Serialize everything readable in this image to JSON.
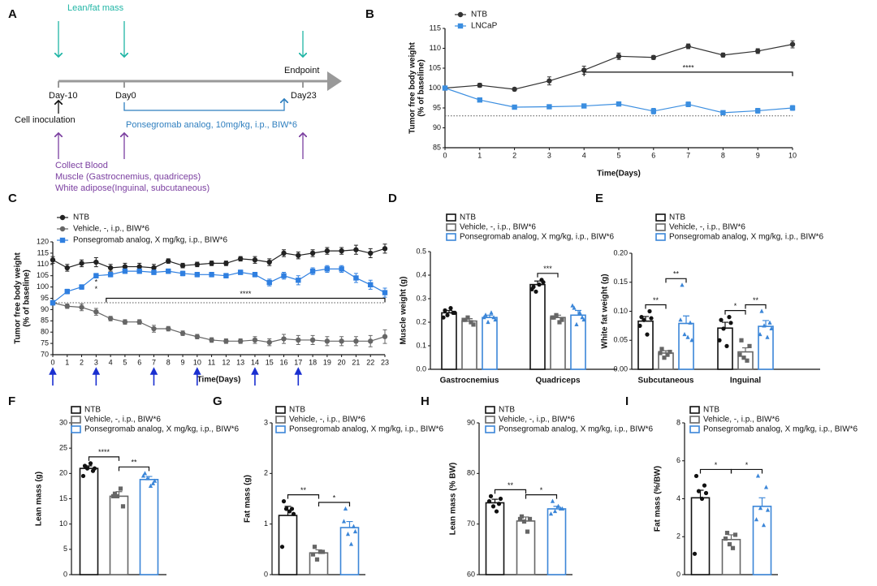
{
  "panel_a": {
    "label": "A",
    "top_label": "Lean/fat mass",
    "endpoint": "Endpoint",
    "days": [
      "Day-10",
      "Day0",
      "Day23"
    ],
    "start_event": "Cell inoculation",
    "treatment": "Ponsegromab analog, 10mg/kg, i.p., BIW*6",
    "collection": [
      "Collect Blood",
      "Muscle (Gastrocnemius, quadriceps)",
      "White adipose(Inguinal, subcutaneous)"
    ]
  },
  "chart_data": [
    {
      "type": "line",
      "panel": "B",
      "ylabel": [
        "Tumor free body weight",
        "(% of baseline)"
      ],
      "xlabel": "Time(Days)",
      "x": [
        0,
        1,
        2,
        3,
        4,
        5,
        6,
        7,
        8,
        9,
        10
      ],
      "xlim": [
        0,
        10
      ],
      "xticks": [
        0,
        1,
        2,
        3,
        4,
        5,
        6,
        7,
        8,
        9,
        10
      ],
      "ylim": [
        85,
        115
      ],
      "yticks": [
        85,
        90,
        95,
        100,
        105,
        110,
        115
      ],
      "reference_line": 93,
      "series": [
        {
          "name": "NTB",
          "color": "#333333",
          "marker": "circle",
          "values": [
            100,
            100.7,
            99.7,
            101.8,
            104.5,
            108,
            107.7,
            110.5,
            108.3,
            109.3,
            111
          ],
          "errors": [
            0,
            0.5,
            0.4,
            1,
            1,
            0.8,
            0.5,
            0.6,
            0.5,
            0.6,
            0.9
          ]
        },
        {
          "name": "LNCaP",
          "color": "#3b8ee0",
          "marker": "square",
          "values": [
            100,
            97,
            95.2,
            95.3,
            95.5,
            96,
            94.2,
            95.9,
            93.8,
            94.3,
            95
          ],
          "errors": [
            0,
            0.4,
            0.4,
            0.4,
            0.5,
            0.5,
            0.7,
            0.6,
            0.5,
            0.6,
            0.6
          ]
        }
      ],
      "annotations": [
        {
          "text": "****",
          "x": [
            4,
            10
          ],
          "y": 104
        }
      ]
    },
    {
      "type": "line",
      "panel": "C",
      "ylabel": [
        "Tumor free body weight",
        "(% of baseline)"
      ],
      "xlabel": "Time(Days)",
      "x": [
        0,
        1,
        2,
        3,
        4,
        5,
        6,
        7,
        8,
        9,
        10,
        11,
        12,
        13,
        14,
        15,
        16,
        17,
        18,
        19,
        20,
        21,
        22,
        23
      ],
      "xlim": [
        0,
        23
      ],
      "xticks": [
        0,
        1,
        2,
        3,
        4,
        5,
        6,
        7,
        8,
        9,
        10,
        11,
        12,
        13,
        14,
        15,
        16,
        17,
        18,
        19,
        20,
        21,
        22,
        23
      ],
      "ylim": [
        70,
        120
      ],
      "yticks": [
        70,
        75,
        80,
        85,
        90,
        95,
        100,
        105,
        110,
        115,
        120
      ],
      "reference_line": 93,
      "dose_days": [
        0,
        3,
        7,
        10,
        14,
        17
      ],
      "series": [
        {
          "name": "NTB",
          "color": "#222222",
          "marker": "circle",
          "values": [
            112,
            108.5,
            110.5,
            111,
            108.5,
            109,
            109,
            108.5,
            111.5,
            109.5,
            110,
            110.5,
            110.5,
            112.5,
            112,
            111,
            115,
            114,
            115,
            116,
            116,
            116.5,
            115,
            117
          ],
          "errors": [
            1.5,
            1.5,
            1.5,
            2,
            1.5,
            1.5,
            1.5,
            1.5,
            1,
            1,
            1,
            1,
            1,
            1,
            1.5,
            1.5,
            1.5,
            1.5,
            1.5,
            1.5,
            1.5,
            2,
            2,
            2
          ]
        },
        {
          "name": "Vehicle, -, i.p., BIW*6",
          "color": "#666666",
          "marker": "circle",
          "values": [
            93,
            91.5,
            91,
            89,
            86,
            84.5,
            84.5,
            81.5,
            81.5,
            79.5,
            78,
            76.5,
            76,
            76,
            76.5,
            75.5,
            77,
            76.5,
            76.5,
            76,
            76,
            76,
            76,
            78
          ],
          "errors": [
            1,
            1,
            1.5,
            1.5,
            1,
            1,
            1,
            1.5,
            1,
            1,
            1,
            1,
            1,
            1,
            1.5,
            1.5,
            2,
            2,
            2,
            2,
            2,
            2,
            2.5,
            3
          ]
        },
        {
          "name": "Ponsegromab analog, X mg/kg, i.p., BIW*6",
          "color": "#2f7fe0",
          "marker": "square",
          "values": [
            93,
            98,
            100,
            105,
            105.5,
            107,
            107,
            106.5,
            107,
            106,
            105.5,
            105.5,
            105,
            106.5,
            105.5,
            102,
            105,
            103,
            107,
            108,
            108,
            104,
            101,
            97.5
          ],
          "errors": [
            1,
            1,
            1,
            1,
            1,
            1,
            1,
            1,
            1,
            1,
            1,
            1,
            1,
            1,
            1,
            1.5,
            1.5,
            2,
            1.5,
            1.5,
            1.5,
            2,
            2,
            2
          ]
        }
      ],
      "annotations": [
        {
          "text": "****",
          "x": [
            3.7,
            23
          ],
          "y": 95
        },
        {
          "text": "*",
          "x": 3,
          "y": 102
        },
        {
          "text": "*",
          "x": 3,
          "y": 99
        }
      ]
    },
    {
      "type": "bar",
      "panel": "D",
      "ylabel": "Muscle weight (g)",
      "categories": [
        "Gastrocnemius",
        "Quadriceps"
      ],
      "ylim": [
        0,
        0.5
      ],
      "yticks": [
        {
          "value": 0,
          "label": "0.0"
        },
        0.1,
        0.2,
        0.3,
        0.4,
        0.5
      ],
      "series": [
        {
          "name": "NTB",
          "color": "#111111",
          "marker": "circle",
          "values": [
            0.24,
            0.36
          ],
          "errors": [
            0.01,
            0.015
          ],
          "points": [
            [
              0.25,
              0.24,
              0.23,
              0.26,
              0.22,
              0.24
            ],
            [
              0.35,
              0.38,
              0.33,
              0.36,
              0.34,
              0.37
            ]
          ]
        },
        {
          "name": "Vehicle, -, i.p., BIW*6",
          "color": "#666666",
          "marker": "square",
          "values": [
            0.205,
            0.22
          ],
          "errors": [
            0.01,
            0.01
          ],
          "points": [
            [
              0.21,
              0.19,
              0.22,
              0.2,
              0.21
            ],
            [
              0.22,
              0.21,
              0.23,
              0.2,
              0.22
            ]
          ]
        },
        {
          "name": "Ponsegromab analog, X mg/kg, i.p., BIW*6",
          "color": "#3b86d8",
          "marker": "triangle",
          "values": [
            0.22,
            0.23
          ],
          "errors": [
            0.01,
            0.02
          ],
          "points": [
            [
              0.23,
              0.22,
              0.2,
              0.24,
              0.22,
              0.21
            ],
            [
              0.26,
              0.22,
              0.19,
              0.24,
              0.27,
              0.21
            ]
          ]
        }
      ],
      "annotations": [
        {
          "text": "***"
        }
      ]
    },
    {
      "type": "bar",
      "panel": "E",
      "ylabel": "White fat weight (g)",
      "categories": [
        "Subcutaneous",
        "Inguinal"
      ],
      "ylim": [
        0,
        0.2
      ],
      "yticks": [
        {
          "value": 0,
          "label": "0.00"
        },
        0.05,
        {
          "value": 0.1,
          "label": "0.10"
        },
        0.15,
        {
          "value": 0.2,
          "label": "0.20"
        }
      ],
      "series": [
        {
          "name": "NTB",
          "color": "#111111",
          "marker": "circle",
          "values": [
            0.083,
            0.071
          ],
          "errors": [
            0.008,
            0.01
          ],
          "points": [
            [
              0.09,
              0.1,
              0.085,
              0.06,
              0.075,
              0.088
            ],
            [
              0.085,
              0.09,
              0.07,
              0.04,
              0.05,
              0.08
            ]
          ]
        },
        {
          "name": "Vehicle, -, i.p., BIW*6",
          "color": "#666666",
          "marker": "square",
          "values": [
            0.028,
            0.03
          ],
          "errors": [
            0.004,
            0.007
          ],
          "points": [
            [
              0.035,
              0.03,
              0.02,
              0.025,
              0.028
            ],
            [
              0.05,
              0.04,
              0.02,
              0.015,
              0.025
            ]
          ]
        },
        {
          "name": "Ponsegromab analog, X mg/kg, i.p., BIW*6",
          "color": "#3b86d8",
          "marker": "triangle",
          "values": [
            0.079,
            0.074
          ],
          "errors": [
            0.013,
            0.01
          ],
          "points": [
            [
              0.145,
              0.08,
              0.06,
              0.055,
              0.085,
              0.05
            ],
            [
              0.1,
              0.08,
              0.075,
              0.055,
              0.06,
              0.07
            ]
          ]
        }
      ],
      "annotations": [
        {
          "text": "**"
        },
        {
          "text": "**"
        },
        {
          "text": "*"
        },
        {
          "text": "**"
        }
      ]
    },
    {
      "type": "bar",
      "panel": "F",
      "ylabel": "Lean mass (g)",
      "categories": [
        null
      ],
      "ylim": [
        0,
        30
      ],
      "yticks": [
        0,
        5,
        10,
        15,
        20,
        25,
        30
      ],
      "series": [
        {
          "name": "NTB",
          "color": "#111111",
          "marker": "circle",
          "values": [
            21
          ],
          "errors": [
            0.5
          ],
          "points": [
            [
              21.5,
              20.5,
              21,
              22,
              19.5,
              21
            ]
          ]
        },
        {
          "name": "Vehicle, -, i.p., BIW*6",
          "color": "#666666",
          "marker": "square",
          "values": [
            15.5
          ],
          "errors": [
            0.9
          ],
          "points": [
            [
              16,
              13.5,
              15.5,
              17,
              15.5
            ]
          ]
        },
        {
          "name": "Ponsegromab analog, X mg/kg, i.p., BIW*6",
          "color": "#3b86d8",
          "marker": "triangle",
          "values": [
            18.8
          ],
          "errors": [
            0.6
          ],
          "points": [
            [
              20,
              18,
              19,
              17.5,
              19.5,
              18.5
            ]
          ]
        }
      ],
      "annotations": [
        {
          "text": "****"
        },
        {
          "text": "**"
        }
      ]
    },
    {
      "type": "bar",
      "panel": "G",
      "ylabel": "Fat mass (g)",
      "categories": [
        null
      ],
      "ylim": [
        0,
        3
      ],
      "yticks": [
        0,
        1,
        2,
        3
      ],
      "series": [
        {
          "name": "NTB",
          "color": "#111111",
          "marker": "circle",
          "values": [
            1.17
          ],
          "errors": [
            0.18
          ],
          "points": [
            [
              1.45,
              1.3,
              1.3,
              1.25,
              0.55,
              1.2
            ]
          ]
        },
        {
          "name": "Vehicle, -, i.p., BIW*6",
          "color": "#666666",
          "marker": "square",
          "values": [
            0.43
          ],
          "errors": [
            0.06
          ],
          "points": [
            [
              0.55,
              0.45,
              0.3,
              0.45,
              0.4
            ]
          ]
        },
        {
          "name": "Ponsegromab analog, X mg/kg, i.p., BIW*6",
          "color": "#3b86d8",
          "marker": "triangle",
          "values": [
            0.93
          ],
          "errors": [
            0.12
          ],
          "points": [
            [
              1.3,
              0.95,
              0.8,
              0.6,
              1.05,
              0.85
            ]
          ]
        }
      ],
      "annotations": [
        {
          "text": "**"
        },
        {
          "text": "*"
        }
      ]
    },
    {
      "type": "bar",
      "panel": "H",
      "ylabel": "Lean mass (% BW)",
      "categories": [
        null
      ],
      "ylim": [
        60,
        90
      ],
      "yticks": [
        60,
        70,
        80,
        90
      ],
      "series": [
        {
          "name": "NTB",
          "color": "#111111",
          "marker": "circle",
          "values": [
            74.2
          ],
          "errors": [
            0.7
          ],
          "points": [
            [
              75.5,
              74,
              73.5,
              72.5,
              74.5,
              75
            ]
          ]
        },
        {
          "name": "Vehicle, -, i.p., BIW*6",
          "color": "#666666",
          "marker": "square",
          "values": [
            70.6
          ],
          "errors": [
            0.8
          ],
          "points": [
            [
              71.5,
              71,
              70.5,
              68.5,
              71
            ]
          ]
        },
        {
          "name": "Ponsegromab analog, X mg/kg, i.p., BIW*6",
          "color": "#3b86d8",
          "marker": "triangle",
          "values": [
            73
          ],
          "errors": [
            0.5
          ],
          "points": [
            [
              74.5,
              73,
              72.5,
              73.5,
              72,
              73
            ]
          ]
        }
      ],
      "annotations": [
        {
          "text": "**"
        },
        {
          "text": "*"
        }
      ]
    },
    {
      "type": "bar",
      "panel": "I",
      "ylabel": "Fat mass (%/BW)",
      "categories": [
        null
      ],
      "ylim": [
        0,
        8
      ],
      "yticks": [
        0,
        2,
        4,
        6,
        8
      ],
      "series": [
        {
          "name": "NTB",
          "color": "#111111",
          "marker": "circle",
          "values": [
            4.05
          ],
          "errors": [
            0.4
          ],
          "points": [
            [
              5.2,
              4.7,
              4.4,
              4,
              1.1,
              4.3
            ]
          ]
        },
        {
          "name": "Vehicle, -, i.p., BIW*6",
          "color": "#666666",
          "marker": "square",
          "values": [
            1.85
          ],
          "errors": [
            0.25
          ],
          "points": [
            [
              2.2,
              2.1,
              1.6,
              1.4,
              1.9
            ]
          ]
        },
        {
          "name": "Ponsegromab analog, X mg/kg, i.p., BIW*6",
          "color": "#3b86d8",
          "marker": "triangle",
          "values": [
            3.6
          ],
          "errors": [
            0.45
          ],
          "points": [
            [
              5.2,
              4.6,
              3.5,
              2.6,
              2.9,
              3.4
            ]
          ]
        }
      ],
      "annotations": [
        {
          "text": "*"
        },
        {
          "text": "*"
        }
      ]
    }
  ]
}
